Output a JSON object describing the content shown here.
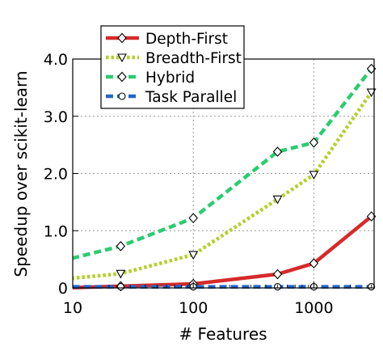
{
  "chart_data": {
    "type": "line",
    "title": "",
    "xlabel": "# Features",
    "ylabel": "Speedup over scikit-learn",
    "xscale": "log",
    "xlim": [
      10,
      3162
    ],
    "ylim": [
      0,
      4.0
    ],
    "xticks": [
      {
        "value": 10,
        "label": "10"
      },
      {
        "value": 100,
        "label": "100"
      },
      {
        "value": 1000,
        "label": "1000"
      }
    ],
    "yticks": [
      {
        "value": 0,
        "label": "0"
      },
      {
        "value": 1,
        "label": "1.0"
      },
      {
        "value": 2,
        "label": "2.0"
      },
      {
        "value": 3,
        "label": "3.0"
      },
      {
        "value": 4,
        "label": "4.0"
      }
    ],
    "grid": true,
    "legend_position": "top-center",
    "series": [
      {
        "name": "Depth-First",
        "color": "#d62a2a",
        "style": "solid",
        "marker": "diamond",
        "x": [
          8,
          25,
          100,
          500,
          1000,
          3000
        ],
        "y": [
          0.0,
          0.03,
          0.07,
          0.24,
          0.43,
          1.25
        ],
        "markers": [
          false,
          true,
          true,
          true,
          true,
          true
        ]
      },
      {
        "name": "Breadth-First",
        "color": "#b5cf2a",
        "style": "dotted",
        "marker": "triangle-down",
        "x": [
          8,
          25,
          100,
          500,
          1000,
          3000
        ],
        "y": [
          0.15,
          0.25,
          0.58,
          1.55,
          1.98,
          3.42
        ],
        "markers": [
          false,
          true,
          true,
          true,
          true,
          true
        ]
      },
      {
        "name": "Hybrid",
        "color": "#2bcc71",
        "style": "dashed",
        "marker": "diamond",
        "x": [
          8,
          25,
          100,
          500,
          1000,
          3000
        ],
        "y": [
          0.47,
          0.73,
          1.22,
          2.38,
          2.54,
          3.83
        ],
        "markers": [
          false,
          true,
          true,
          true,
          true,
          true
        ]
      },
      {
        "name": "Task Parallel",
        "color": "#2266cc",
        "style": "dashed",
        "marker": "circle",
        "x": [
          8,
          25,
          100,
          500,
          1000,
          3000
        ],
        "y": [
          0.02,
          0.02,
          0.02,
          0.02,
          0.02,
          0.02
        ],
        "markers": [
          false,
          true,
          true,
          true,
          true,
          true
        ]
      }
    ]
  }
}
